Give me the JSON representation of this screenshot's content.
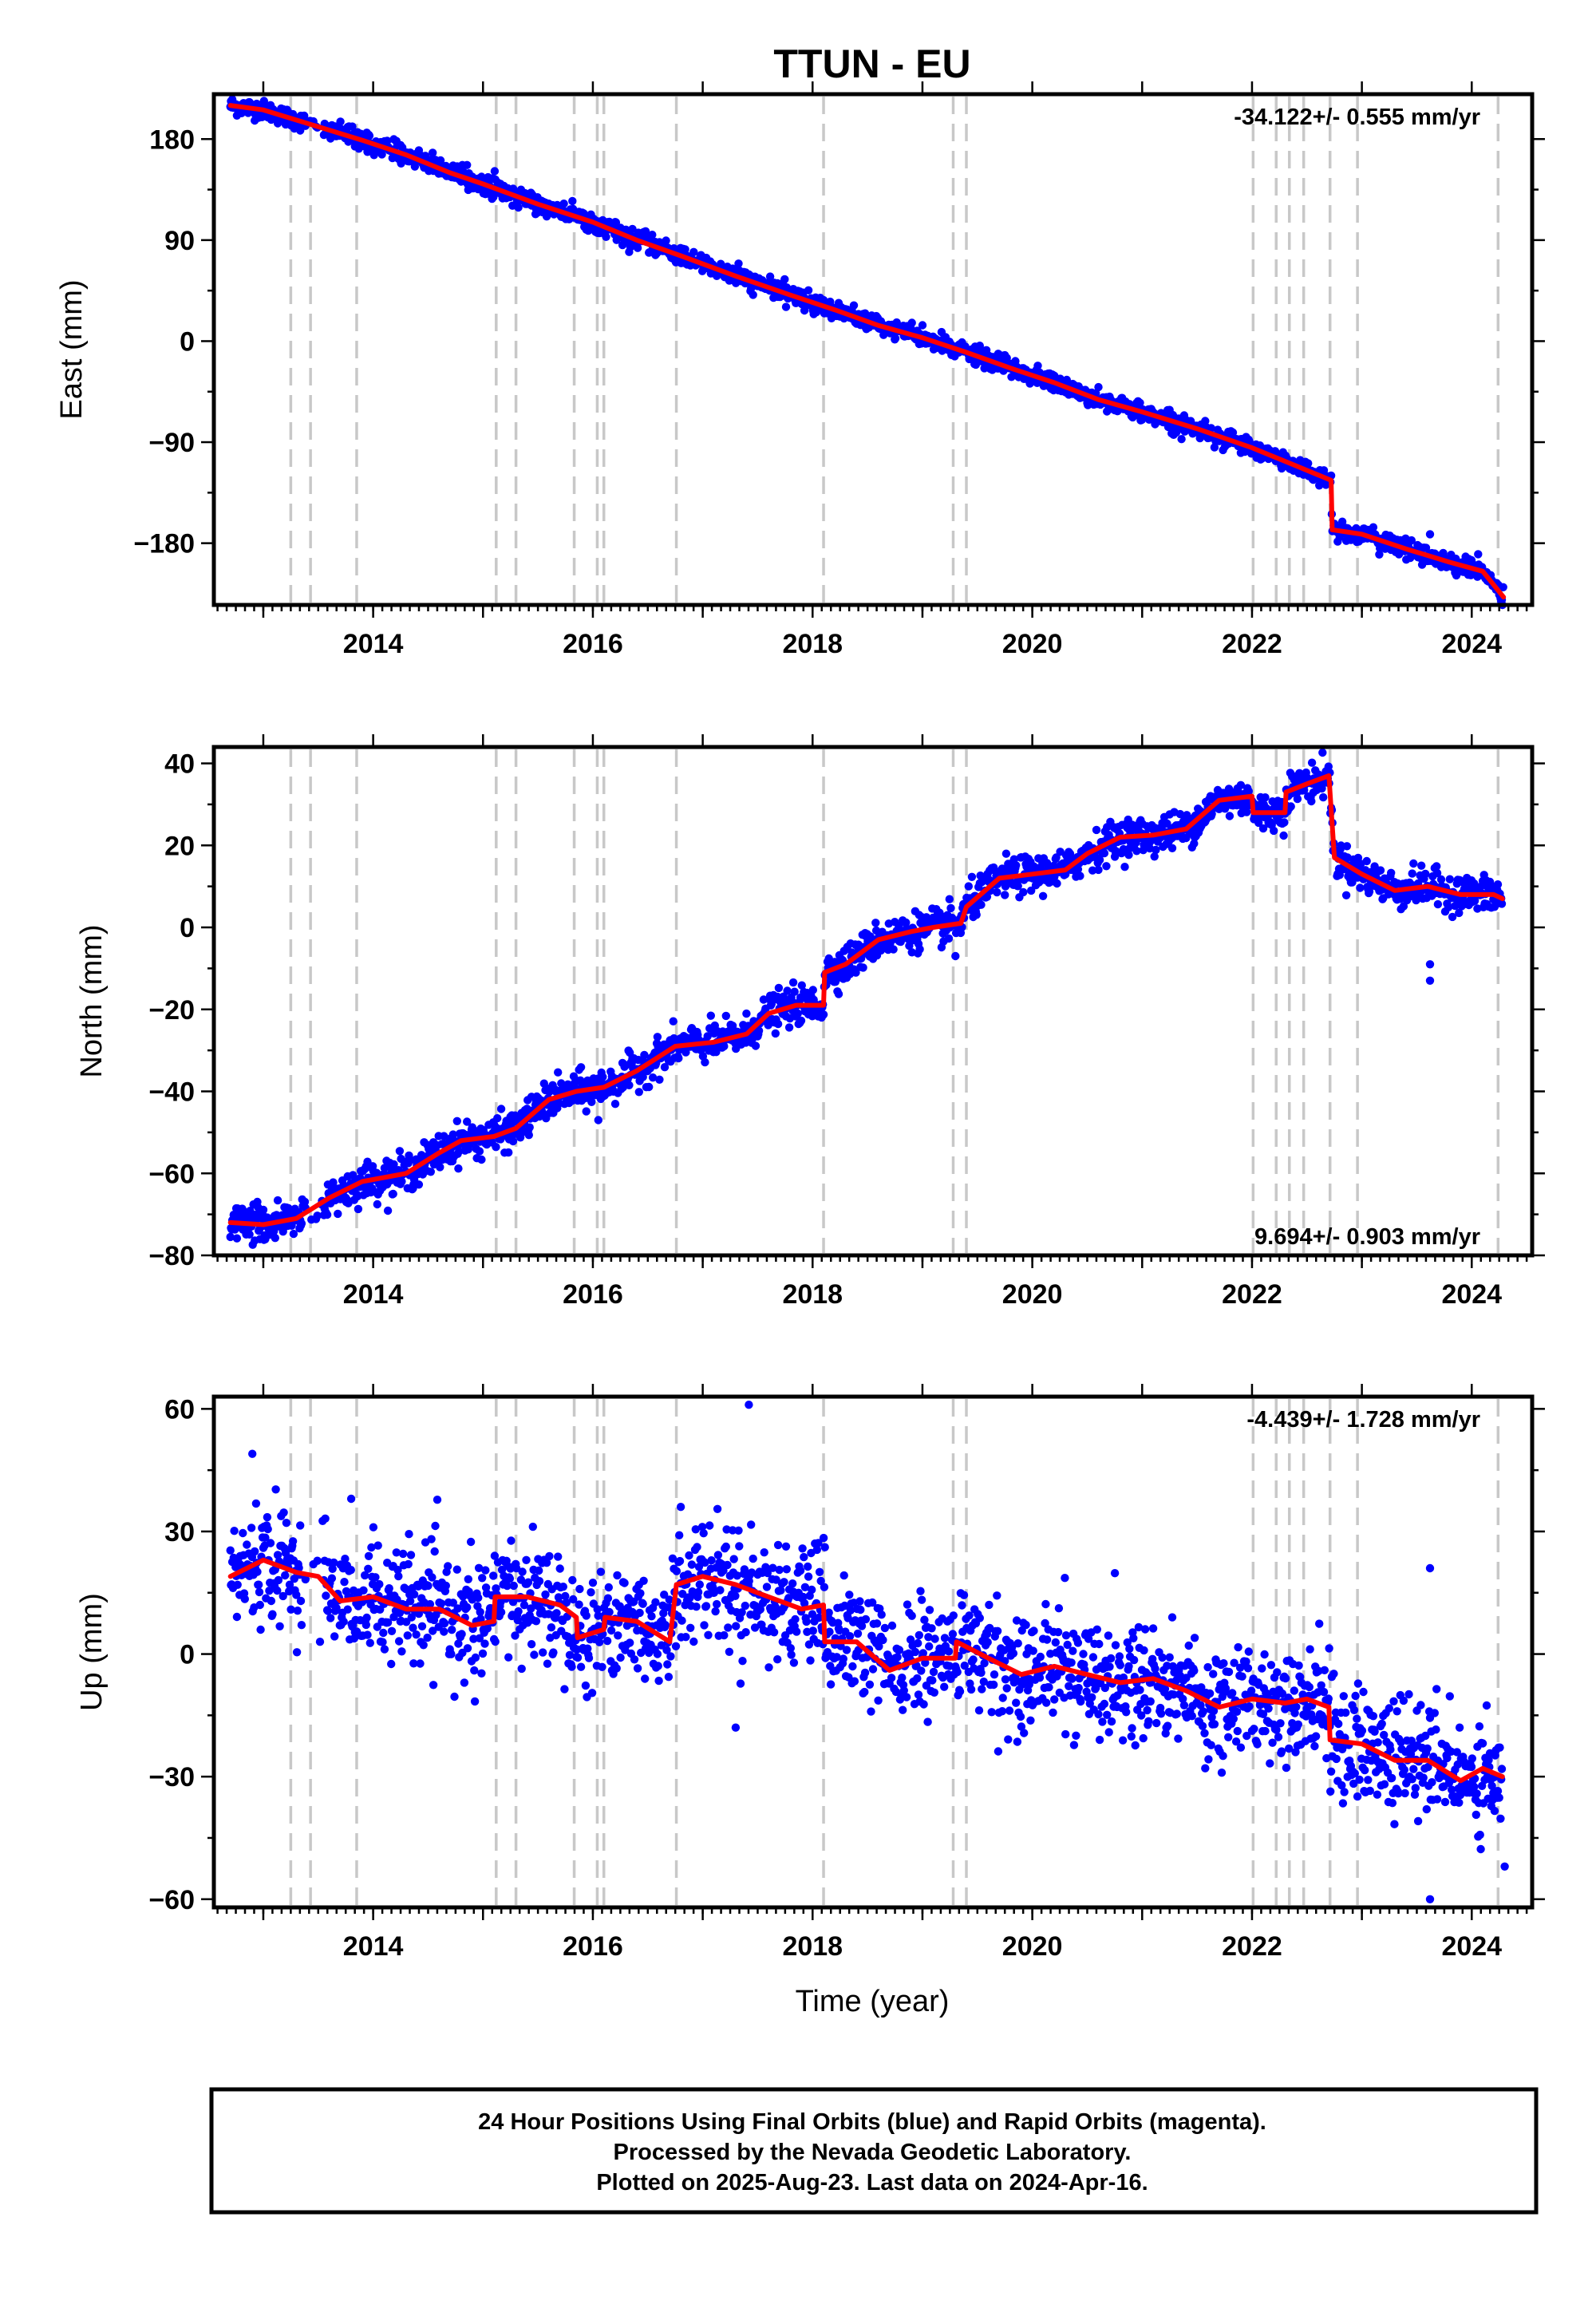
{
  "title": "TTUN - EU",
  "colors": {
    "data": "#0000ff",
    "fit": "#ff0000",
    "events": "#c8c8c8"
  },
  "chart_data": [
    {
      "type": "scatter",
      "panel": "east",
      "ylabel": "East (mm)",
      "xlabel": "",
      "xlim": [
        2012.55,
        2024.55
      ],
      "ylim": [
        -235,
        220
      ],
      "yticks": [
        180,
        90,
        0,
        -90,
        -180
      ],
      "ytick_labels": [
        "180",
        "90",
        "0",
        "−90",
        "−180"
      ],
      "xticks": [
        2014,
        2016,
        2018,
        2020,
        2022,
        2024
      ],
      "rate": "-34.122+/- 0.555 mm/yr",
      "rate_position": "top-right",
      "fit": [
        [
          2012.7,
          210
        ],
        [
          2013.0,
          206
        ],
        [
          2013.3,
          197
        ],
        [
          2013.6,
          188
        ],
        [
          2013.9,
          179
        ],
        [
          2014.3,
          166
        ],
        [
          2014.7,
          150
        ],
        [
          2015.0,
          140
        ],
        [
          2015.5,
          122
        ],
        [
          2016.0,
          106
        ],
        [
          2016.4,
          90
        ],
        [
          2016.8,
          76
        ],
        [
          2017.3,
          58
        ],
        [
          2017.8,
          41
        ],
        [
          2018.2,
          28
        ],
        [
          2018.6,
          14
        ],
        [
          2019.0,
          3
        ],
        [
          2019.4,
          -10
        ],
        [
          2019.8,
          -24
        ],
        [
          2020.2,
          -37
        ],
        [
          2020.6,
          -52
        ],
        [
          2021.0,
          -63
        ],
        [
          2021.5,
          -78
        ],
        [
          2022.0,
          -95
        ],
        [
          2022.4,
          -111
        ],
        [
          2022.72,
          -124
        ],
        [
          2022.73,
          -168
        ],
        [
          2023.0,
          -172
        ],
        [
          2023.4,
          -185
        ],
        [
          2023.8,
          -197
        ],
        [
          2024.1,
          -205
        ],
        [
          2024.29,
          -228
        ]
      ],
      "noise_mm": 4,
      "outliers": [
        [
          2023.62,
          -172
        ],
        [
          2016.6,
          80
        ],
        [
          2013.9,
          178
        ]
      ]
    },
    {
      "type": "scatter",
      "panel": "north",
      "ylabel": "North (mm)",
      "xlabel": "",
      "xlim": [
        2012.55,
        2024.55
      ],
      "ylim": [
        -80,
        44
      ],
      "yticks": [
        40,
        20,
        0,
        -20,
        -40,
        -60,
        -80
      ],
      "ytick_labels": [
        "40",
        "20",
        "0",
        "−20",
        "−40",
        "−60",
        "−80"
      ],
      "xticks": [
        2014,
        2016,
        2018,
        2020,
        2022,
        2024
      ],
      "rate": "9.694+/- 0.903 mm/yr",
      "rate_position": "bottom-right",
      "fit": [
        [
          2012.7,
          -72
        ],
        [
          2013.0,
          -72.5
        ],
        [
          2013.3,
          -71
        ],
        [
          2013.6,
          -66
        ],
        [
          2013.9,
          -62
        ],
        [
          2014.3,
          -60
        ],
        [
          2014.6,
          -55
        ],
        [
          2014.8,
          -52
        ],
        [
          2015.1,
          -51
        ],
        [
          2015.3,
          -49
        ],
        [
          2015.6,
          -42
        ],
        [
          2015.85,
          -40
        ],
        [
          2016.1,
          -39
        ],
        [
          2016.4,
          -35
        ],
        [
          2016.75,
          -29
        ],
        [
          2017.1,
          -28
        ],
        [
          2017.4,
          -26
        ],
        [
          2017.6,
          -21
        ],
        [
          2017.85,
          -19
        ],
        [
          2018.1,
          -19
        ],
        [
          2018.11,
          -11
        ],
        [
          2018.3,
          -9
        ],
        [
          2018.6,
          -3
        ],
        [
          2018.9,
          -1
        ],
        [
          2019.1,
          0
        ],
        [
          2019.35,
          1
        ],
        [
          2019.4,
          5
        ],
        [
          2019.7,
          12
        ],
        [
          2020.0,
          13
        ],
        [
          2020.3,
          14
        ],
        [
          2020.5,
          18
        ],
        [
          2020.8,
          22
        ],
        [
          2021.1,
          22.5
        ],
        [
          2021.4,
          24
        ],
        [
          2021.7,
          31
        ],
        [
          2022.0,
          32
        ],
        [
          2022.01,
          28
        ],
        [
          2022.3,
          28
        ],
        [
          2022.31,
          33
        ],
        [
          2022.5,
          35
        ],
        [
          2022.7,
          37
        ],
        [
          2022.75,
          17
        ],
        [
          2023.0,
          13
        ],
        [
          2023.3,
          9
        ],
        [
          2023.6,
          10
        ],
        [
          2023.9,
          8
        ],
        [
          2024.2,
          8
        ],
        [
          2024.28,
          7
        ]
      ],
      "noise_mm": 2.2,
      "outliers": [
        [
          2023.62,
          -13
        ],
        [
          2023.62,
          -9
        ],
        [
          2016.05,
          -47
        ],
        [
          2019.3,
          -7
        ]
      ]
    },
    {
      "type": "scatter",
      "panel": "up",
      "ylabel": "Up (mm)",
      "xlabel": "Time (year)",
      "xlim": [
        2012.55,
        2024.55
      ],
      "ylim": [
        -62,
        63
      ],
      "yticks": [
        60,
        30,
        0,
        -30,
        -60
      ],
      "ytick_labels": [
        "60",
        "30",
        "0",
        "−30",
        "−60"
      ],
      "xticks": [
        2014,
        2016,
        2018,
        2020,
        2022,
        2024
      ],
      "rate": "-4.439+/- 1.728 mm/yr",
      "rate_position": "top-right",
      "fit": [
        [
          2012.7,
          19
        ],
        [
          2013.0,
          23
        ],
        [
          2013.3,
          20
        ],
        [
          2013.5,
          19
        ],
        [
          2013.7,
          13
        ],
        [
          2014.0,
          14
        ],
        [
          2014.3,
          11
        ],
        [
          2014.6,
          11
        ],
        [
          2014.9,
          7
        ],
        [
          2015.1,
          8
        ],
        [
          2015.11,
          14
        ],
        [
          2015.4,
          14
        ],
        [
          2015.7,
          12
        ],
        [
          2015.85,
          9
        ],
        [
          2015.86,
          4
        ],
        [
          2016.1,
          6
        ],
        [
          2016.11,
          9
        ],
        [
          2016.4,
          8
        ],
        [
          2016.7,
          3
        ],
        [
          2016.76,
          17
        ],
        [
          2017.0,
          19
        ],
        [
          2017.3,
          17
        ],
        [
          2017.6,
          14
        ],
        [
          2017.9,
          11
        ],
        [
          2018.1,
          12
        ],
        [
          2018.11,
          3
        ],
        [
          2018.4,
          3
        ],
        [
          2018.7,
          -4
        ],
        [
          2019.0,
          -1
        ],
        [
          2019.3,
          -1
        ],
        [
          2019.31,
          3
        ],
        [
          2019.6,
          -1
        ],
        [
          2019.9,
          -5
        ],
        [
          2020.2,
          -3
        ],
        [
          2020.5,
          -5
        ],
        [
          2020.8,
          -7
        ],
        [
          2021.1,
          -6
        ],
        [
          2021.4,
          -9
        ],
        [
          2021.7,
          -13
        ],
        [
          2022.0,
          -11
        ],
        [
          2022.3,
          -12
        ],
        [
          2022.5,
          -11
        ],
        [
          2022.7,
          -13
        ],
        [
          2022.71,
          -21
        ],
        [
          2023.0,
          -22
        ],
        [
          2023.3,
          -26
        ],
        [
          2023.6,
          -26
        ],
        [
          2023.9,
          -31
        ],
        [
          2024.1,
          -28
        ],
        [
          2024.28,
          -30
        ]
      ],
      "noise_mm": 7,
      "outliers": [
        [
          2017.42,
          61
        ],
        [
          2012.9,
          49
        ],
        [
          2013.8,
          38
        ],
        [
          2016.8,
          36
        ],
        [
          2023.62,
          -60
        ],
        [
          2024.3,
          -52
        ],
        [
          2017.3,
          -18
        ],
        [
          2023.62,
          21
        ]
      ]
    }
  ],
  "event_lines": [
    2013.25,
    2013.43,
    2013.85,
    2015.12,
    2015.3,
    2015.83,
    2016.04,
    2016.1,
    2016.76,
    2018.1,
    2019.28,
    2019.4,
    2022.01,
    2022.22,
    2022.34,
    2022.47,
    2022.71,
    2022.96,
    2024.24
  ],
  "footer": {
    "line1": "24 Hour Positions Using Final Orbits (blue) and Rapid Orbits (magenta).",
    "line2": "Processed by the Nevada Geodetic Laboratory.",
    "line3": "Plotted on 2025-Aug-23. Last data on 2024-Apr-16."
  }
}
